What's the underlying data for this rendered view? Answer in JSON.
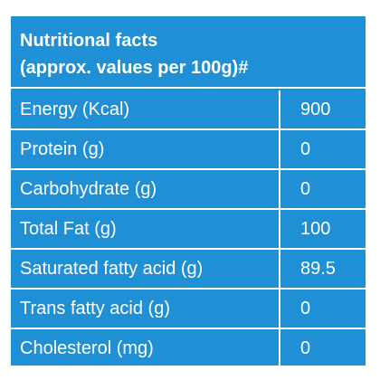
{
  "header": {
    "title_line1": "Nutritional facts",
    "title_line2": "(approx. values per 100g)#"
  },
  "colors": {
    "background": "#1f8fd6",
    "text": "#ffffff",
    "border": "#ffffff"
  },
  "rows": [
    {
      "label": "Energy (Kcal)",
      "value": "900"
    },
    {
      "label": "Protein (g)",
      "value": "0"
    },
    {
      "label": "Carbohydrate (g)",
      "value": "0"
    },
    {
      "label": "Total Fat (g)",
      "value": "100"
    },
    {
      "label": "Saturated fatty acid (g)",
      "value": "89.5"
    },
    {
      "label": "Trans fatty acid (g)",
      "value": "0"
    },
    {
      "label": "Cholesterol (mg)",
      "value": "0"
    }
  ]
}
